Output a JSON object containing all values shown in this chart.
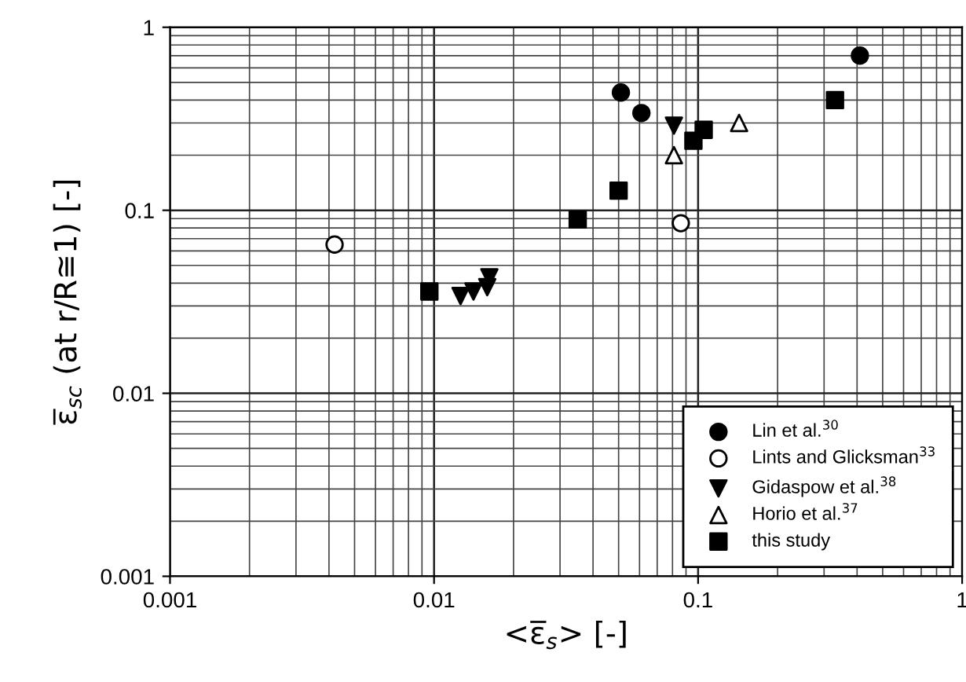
{
  "chart_data": {
    "type": "scatter",
    "xlabel": "<ε̅$_{s}$> [-]",
    "ylabel": "ε̅$_{sc}$ (at r/R≅1) [-]",
    "log": "xy",
    "xlim": [
      0.001,
      1
    ],
    "ylim": [
      0.001,
      1
    ],
    "xticks": [
      0.001,
      0.01,
      0.1,
      1
    ],
    "yticks": [
      0.001,
      0.01,
      0.1,
      1
    ],
    "grid": true,
    "legend": "bottom right",
    "series": [
      {
        "name": "Lin et al.$^{30}$",
        "color": "#000000",
        "marker": "circle",
        "x": [
          0.051,
          0.061,
          0.41
        ],
        "values": [
          0.44,
          0.34,
          0.7
        ]
      },
      {
        "name": "Lints and Glicksman$^{33}$",
        "color": "#ffffff",
        "marker": "circle",
        "x": [
          0.0042,
          0.086
        ],
        "values": [
          0.065,
          0.085
        ]
      },
      {
        "name": "Gidaspow et al.$^{38}$",
        "color": "#000000",
        "marker": "triangle-down",
        "x": [
          0.081,
          0.0126,
          0.0141,
          0.0159,
          0.0162
        ],
        "values": [
          0.29,
          0.034,
          0.036,
          0.038,
          0.043
        ]
      },
      {
        "name": "Horio et al.$^{37}$",
        "color": "#ffffff",
        "marker": "triangle",
        "x": [
          0.081,
          0.143
        ],
        "values": [
          0.2,
          0.3
        ]
      },
      {
        "name": "this study",
        "color": "#000000",
        "marker": "square",
        "x": [
          0.0096,
          0.035,
          0.05,
          0.096,
          0.105,
          0.33
        ],
        "values": [
          0.036,
          0.089,
          0.128,
          0.24,
          0.275,
          0.4
        ]
      }
    ]
  }
}
